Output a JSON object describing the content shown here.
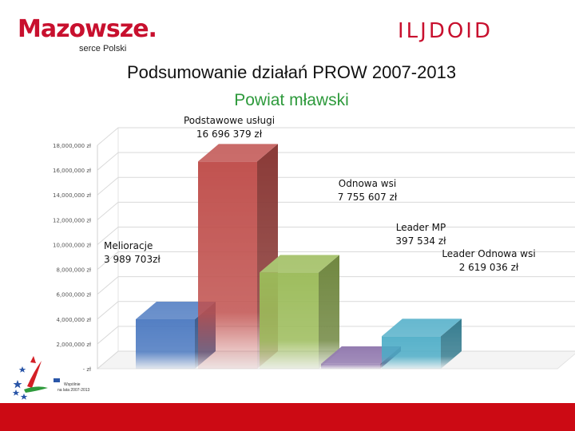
{
  "header": {
    "logo_text": "Mazowsze.",
    "logo_subtext": "serce Polski",
    "right_emblem": "ILJDOID",
    "title": "Podsumowanie działań PROW 2007-2013",
    "subtitle": "Powiat mławski"
  },
  "footer": {
    "caption_line1": "Wspólnie",
    "caption_line2": "na lata 2007-2013",
    "bar_color": "#cc0a14"
  },
  "chart_data": {
    "type": "bar",
    "style": "3d",
    "title": "Podsumowanie działań PROW 2007-2013",
    "subtitle": "Powiat mławski",
    "xlabel": "",
    "ylabel": "",
    "ylim": [
      0,
      18000000
    ],
    "y_ticks": [
      0,
      2000000,
      4000000,
      6000000,
      8000000,
      10000000,
      12000000,
      14000000,
      16000000,
      18000000
    ],
    "y_tick_labels": [
      "- zł",
      "2,000,000 zł",
      "4,000,000 zł",
      "6,000,000 zł",
      "8,000,000 zł",
      "10,000,000 zł",
      "12,000,000 zł",
      "14,000,000 zł",
      "16,000,000 zł",
      "18,000,000 zł"
    ],
    "grid": true,
    "legend": "none",
    "bars": [
      {
        "name": "Melioracje",
        "value": 3989703,
        "label_lines": [
          "Melioracje",
          "3 989 703zł"
        ],
        "color": "#4a78c0"
      },
      {
        "name": "Podstawowe usługi",
        "value": 16696379,
        "label_lines": [
          "Podstawowe usługi",
          "16 696 379 zł"
        ],
        "color": "#c0504d"
      },
      {
        "name": "Odnowa wsi",
        "value": 7755607,
        "label_lines": [
          "Odnowa wsi",
          "7 755 607 zł"
        ],
        "color": "#9bbb59"
      },
      {
        "name": "Leader MP",
        "value": 397534,
        "label_lines": [
          "Leader MP",
          "397 534 zł"
        ],
        "color": "#8064a2"
      },
      {
        "name": "Leader Odnowa wsi",
        "value": 2619036,
        "label_lines": [
          "Leader Odnowa wsi",
          "2 619 036 zł"
        ],
        "color": "#4bacc6"
      }
    ]
  }
}
